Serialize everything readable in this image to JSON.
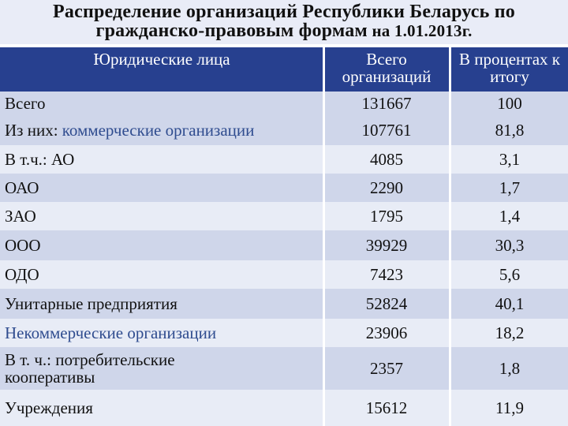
{
  "title": {
    "line1": "Распределение организаций Республики Беларусь по",
    "line2_main": "гражданско-правовым формам",
    "line2_small": " на 1.01.2013г."
  },
  "table": {
    "headers": {
      "col1": "Юридические лица",
      "col2": "Всего организаций",
      "col3": "В процентах к итогу"
    },
    "rows": [
      {
        "label": "Всего",
        "label_prefix": "",
        "total": "131667",
        "percent": "100"
      },
      {
        "label": "коммерческие организации",
        "label_prefix": "Из них: ",
        "total": "107761",
        "percent": "81,8"
      },
      {
        "label": "В т.ч.: АО",
        "label_prefix": "",
        "total": "4085",
        "percent": "3,1"
      },
      {
        "label": "ОАО",
        "label_prefix": "",
        "total": "2290",
        "percent": "1,7"
      },
      {
        "label": "ЗАО",
        "label_prefix": "",
        "total": "1795",
        "percent": "1,4"
      },
      {
        "label": "ООО",
        "label_prefix": "",
        "total": "39929",
        "percent": "30,3"
      },
      {
        "label": "ОДО",
        "label_prefix": "",
        "total": "7423",
        "percent": "5,6"
      },
      {
        "label": "Унитарные предприятия",
        "label_prefix": "",
        "total": "52824",
        "percent": "40,1"
      },
      {
        "label": "Некоммерческие организации",
        "label_prefix": "",
        "total": "23906",
        "percent": "18,2"
      },
      {
        "label": "В т. ч.: потребительские кооперативы",
        "label_prefix": "",
        "total": "2357",
        "percent": "1,8"
      },
      {
        "label": "Учреждения",
        "label_prefix": "",
        "total": "15612",
        "percent": "11,9"
      }
    ]
  },
  "colors": {
    "header_bg": "#27408f",
    "row_dark": "#cfd6ea",
    "row_light": "#e8ecf6",
    "accent_text": "#2f4c8f"
  }
}
